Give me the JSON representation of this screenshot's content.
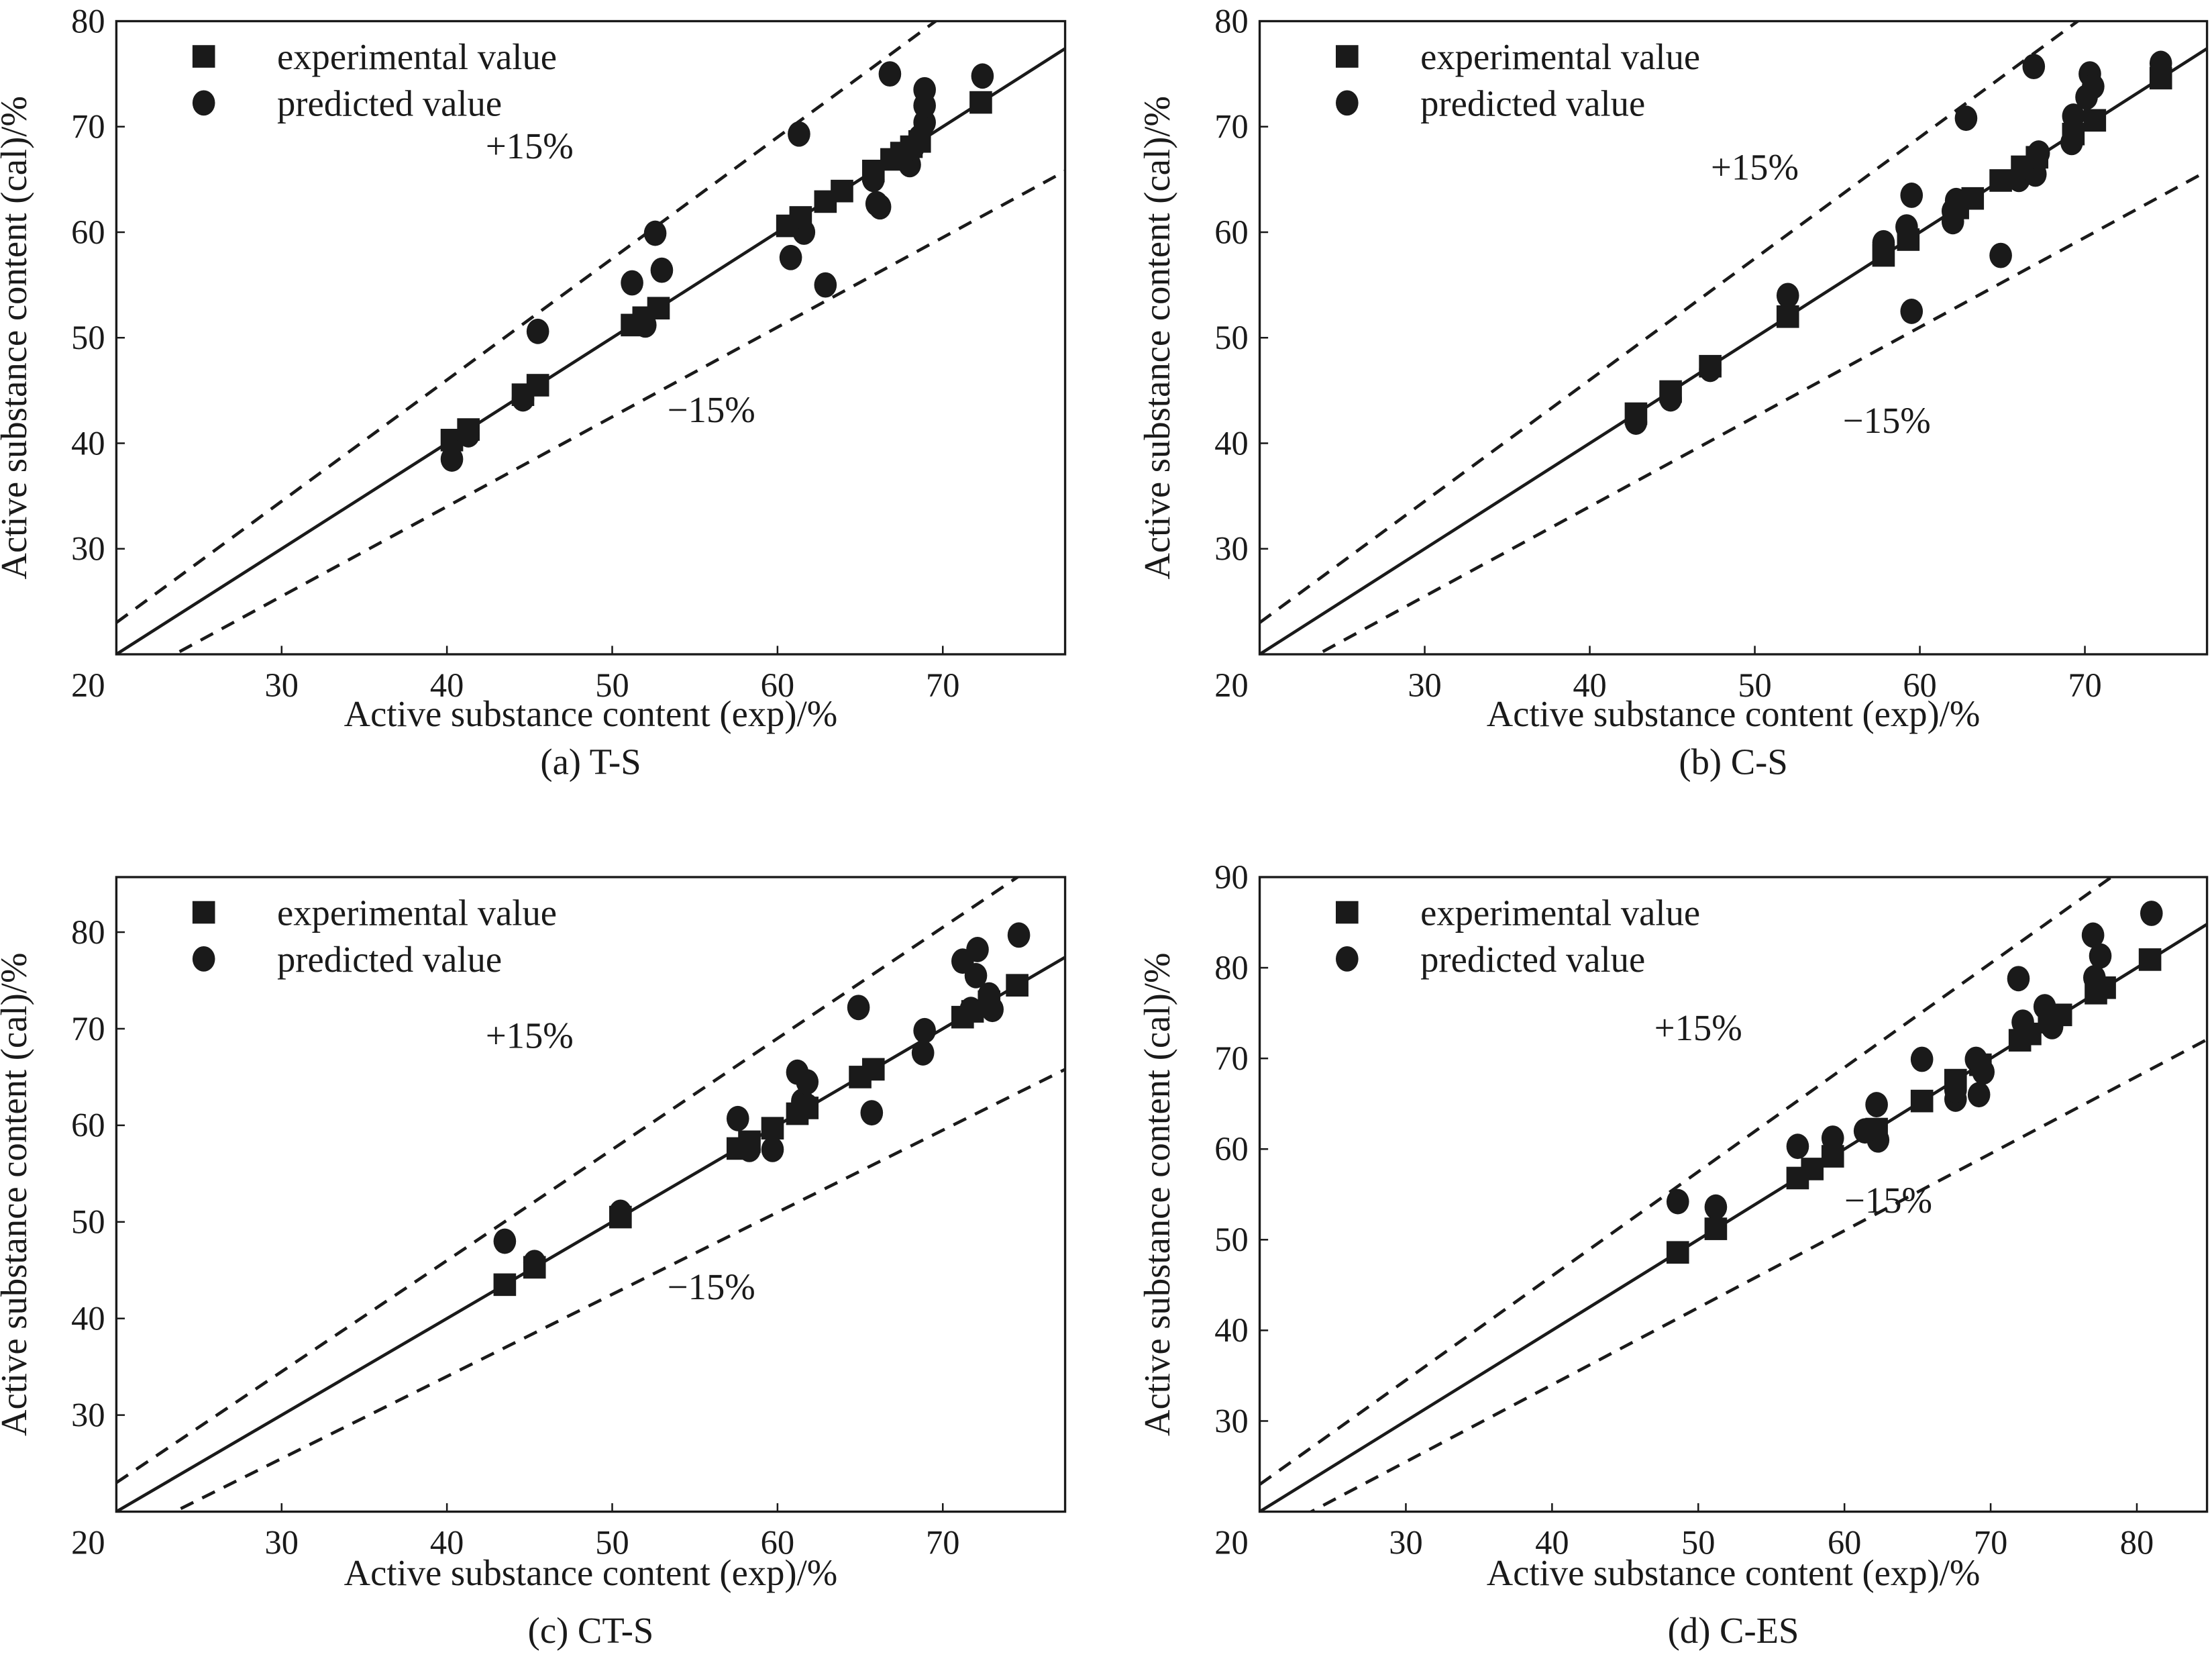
{
  "chart_data": [
    {
      "type": "scatter",
      "caption": "(a) T-S",
      "xlabel": "Active substance content (exp)/%",
      "ylabel": "Active substance content (cal)/%",
      "xlim": [
        20,
        77.4
      ],
      "ylim": [
        20,
        80
      ],
      "xticks": [
        30,
        40,
        50,
        60,
        70
      ],
      "yticks": [
        20,
        30,
        40,
        50,
        60,
        70,
        80
      ],
      "legend": {
        "placement": "top-left"
      },
      "band_labels": [
        "+15%",
        "−15%"
      ],
      "series": [
        {
          "name": "experimental value",
          "marker": "square",
          "x": [
            40.3,
            41.3,
            44.6,
            45.5,
            51.2,
            51.9,
            52.8,
            60.6,
            61.4,
            62.9,
            63.9,
            65.8,
            66.9,
            67.5,
            68.1,
            68.6,
            72.3
          ],
          "y": [
            40.3,
            41.3,
            44.6,
            45.5,
            51.2,
            51.9,
            52.8,
            60.6,
            61.4,
            62.9,
            63.9,
            65.8,
            66.9,
            67.5,
            68.1,
            68.6,
            72.3
          ]
        },
        {
          "name": "predicted value",
          "marker": "circle",
          "x": [
            40.3,
            41.3,
            44.6,
            45.5,
            51.2,
            52.0,
            52.6,
            53.0,
            60.8,
            61.3,
            61.6,
            62.9,
            65.8,
            66.0,
            66.2,
            66.8,
            68.0,
            68.2,
            68.6,
            68.9,
            68.9,
            68.9,
            72.4
          ],
          "y": [
            38.5,
            40.8,
            44.2,
            50.6,
            55.2,
            51.2,
            59.9,
            56.4,
            57.6,
            69.3,
            60.0,
            55.0,
            65.0,
            62.7,
            62.4,
            75.0,
            66.4,
            68.0,
            69.0,
            70.4,
            72.0,
            73.5,
            74.8
          ]
        }
      ]
    },
    {
      "type": "scatter",
      "caption": "(b) C-S",
      "xlabel": "Active substance content (exp)/%",
      "ylabel": "Active substance content (cal)/%",
      "xlim": [
        20,
        77.4
      ],
      "ylim": [
        20,
        80
      ],
      "xticks": [
        30,
        40,
        50,
        60,
        70
      ],
      "yticks": [
        20,
        30,
        40,
        50,
        60,
        70,
        80
      ],
      "legend": {
        "placement": "top-left"
      },
      "band_labels": [
        "+15%",
        "−15%"
      ],
      "series": [
        {
          "name": "experimental value",
          "marker": "square",
          "x": [
            42.8,
            44.9,
            47.3,
            52.0,
            57.8,
            59.3,
            62.3,
            63.2,
            64.9,
            66.2,
            67.1,
            69.3,
            70.6,
            74.6
          ],
          "y": [
            42.8,
            44.9,
            47.3,
            52.0,
            57.8,
            59.3,
            62.3,
            63.2,
            64.9,
            66.2,
            67.1,
            69.3,
            70.6,
            74.6
          ]
        },
        {
          "name": "predicted value",
          "marker": "circle",
          "x": [
            42.8,
            44.9,
            47.3,
            52.0,
            57.8,
            59.2,
            59.5,
            59.5,
            62.0,
            62.0,
            62.2,
            62.8,
            64.9,
            66.0,
            67.0,
            67.0,
            67.2,
            66.9,
            69.2,
            69.3,
            70.1,
            70.3,
            70.5,
            74.6
          ],
          "y": [
            42.0,
            44.2,
            47.0,
            54.0,
            59.0,
            60.5,
            63.5,
            52.5,
            61.0,
            62.0,
            63.0,
            70.8,
            57.8,
            65.0,
            65.5,
            66.5,
            67.5,
            75.7,
            68.5,
            71.0,
            72.8,
            75.0,
            73.8,
            76.0
          ]
        }
      ]
    },
    {
      "type": "scatter",
      "caption": "(c) CT-S",
      "xlabel": "Active substance content (exp)/%",
      "ylabel": "Active substance content (cal)/%",
      "xlim": [
        20,
        77.4
      ],
      "ylim": [
        20,
        85.7
      ],
      "xticks": [
        30,
        40,
        50,
        60,
        70
      ],
      "yticks": [
        20,
        30,
        40,
        50,
        60,
        70,
        80
      ],
      "legend": {
        "placement": "top-left"
      },
      "band_labels": [
        "+15%",
        "−15%"
      ],
      "series": [
        {
          "name": "experimental value",
          "marker": "square",
          "x": [
            43.5,
            45.3,
            50.5,
            57.6,
            58.3,
            59.7,
            61.2,
            61.8,
            65.0,
            65.8,
            71.2,
            71.8,
            72.8,
            74.5
          ],
          "y": [
            43.5,
            45.3,
            50.5,
            57.6,
            58.3,
            59.7,
            61.2,
            61.8,
            65.0,
            65.8,
            71.2,
            71.8,
            72.8,
            74.5
          ]
        },
        {
          "name": "predicted value",
          "marker": "circle",
          "x": [
            43.5,
            45.3,
            50.5,
            57.6,
            58.3,
            59.7,
            61.2,
            61.5,
            61.8,
            61.8,
            64.9,
            65.7,
            68.8,
            68.9,
            71.2,
            71.7,
            72.0,
            72.1,
            72.8,
            73.0,
            74.6
          ],
          "y": [
            48.0,
            45.8,
            51.0,
            60.7,
            57.5,
            57.5,
            65.5,
            62.5,
            64.5,
            62.0,
            72.2,
            61.3,
            67.5,
            69.8,
            77.0,
            72.0,
            75.5,
            78.2,
            73.5,
            72.0,
            79.7
          ]
        }
      ]
    },
    {
      "type": "scatter",
      "caption": "(d) C-ES",
      "xlabel": "Active substance content (exp)/%",
      "ylabel": "Active substance content (cal)/%",
      "xlim": [
        20,
        84.8
      ],
      "ylim": [
        20,
        90
      ],
      "xticks": [
        30,
        40,
        50,
        60,
        70,
        80
      ],
      "yticks": [
        20,
        30,
        40,
        50,
        60,
        70,
        80,
        90
      ],
      "legend": {
        "placement": "top-left"
      },
      "band_labels": [
        "+15%",
        "−15%"
      ],
      "series": [
        {
          "name": "experimental value",
          "marker": "square",
          "x": [
            48.6,
            51.2,
            56.8,
            57.8,
            59.2,
            62.2,
            65.3,
            67.6,
            69.3,
            72.0,
            72.7,
            74.0,
            74.8,
            77.2,
            77.8,
            80.9
          ],
          "y": [
            48.6,
            51.2,
            56.8,
            57.8,
            59.2,
            62.2,
            65.3,
            67.6,
            69.3,
            72.0,
            72.7,
            74.0,
            74.8,
            77.2,
            77.8,
            80.9
          ]
        },
        {
          "name": "predicted value",
          "marker": "circle",
          "x": [
            48.6,
            51.2,
            56.8,
            59.2,
            62.2,
            62.3,
            61.4,
            65.3,
            67.6,
            67.6,
            69.0,
            69.2,
            69.5,
            71.9,
            72.2,
            73.7,
            74.2,
            77.0,
            77.1,
            77.5,
            81.0
          ],
          "y": [
            54.2,
            53.6,
            60.3,
            61.2,
            64.9,
            61.0,
            62.0,
            69.9,
            65.5,
            66.5,
            69.9,
            66.0,
            68.5,
            78.8,
            74.0,
            75.7,
            73.5,
            83.6,
            78.9,
            81.3,
            86.0
          ]
        }
      ]
    }
  ]
}
